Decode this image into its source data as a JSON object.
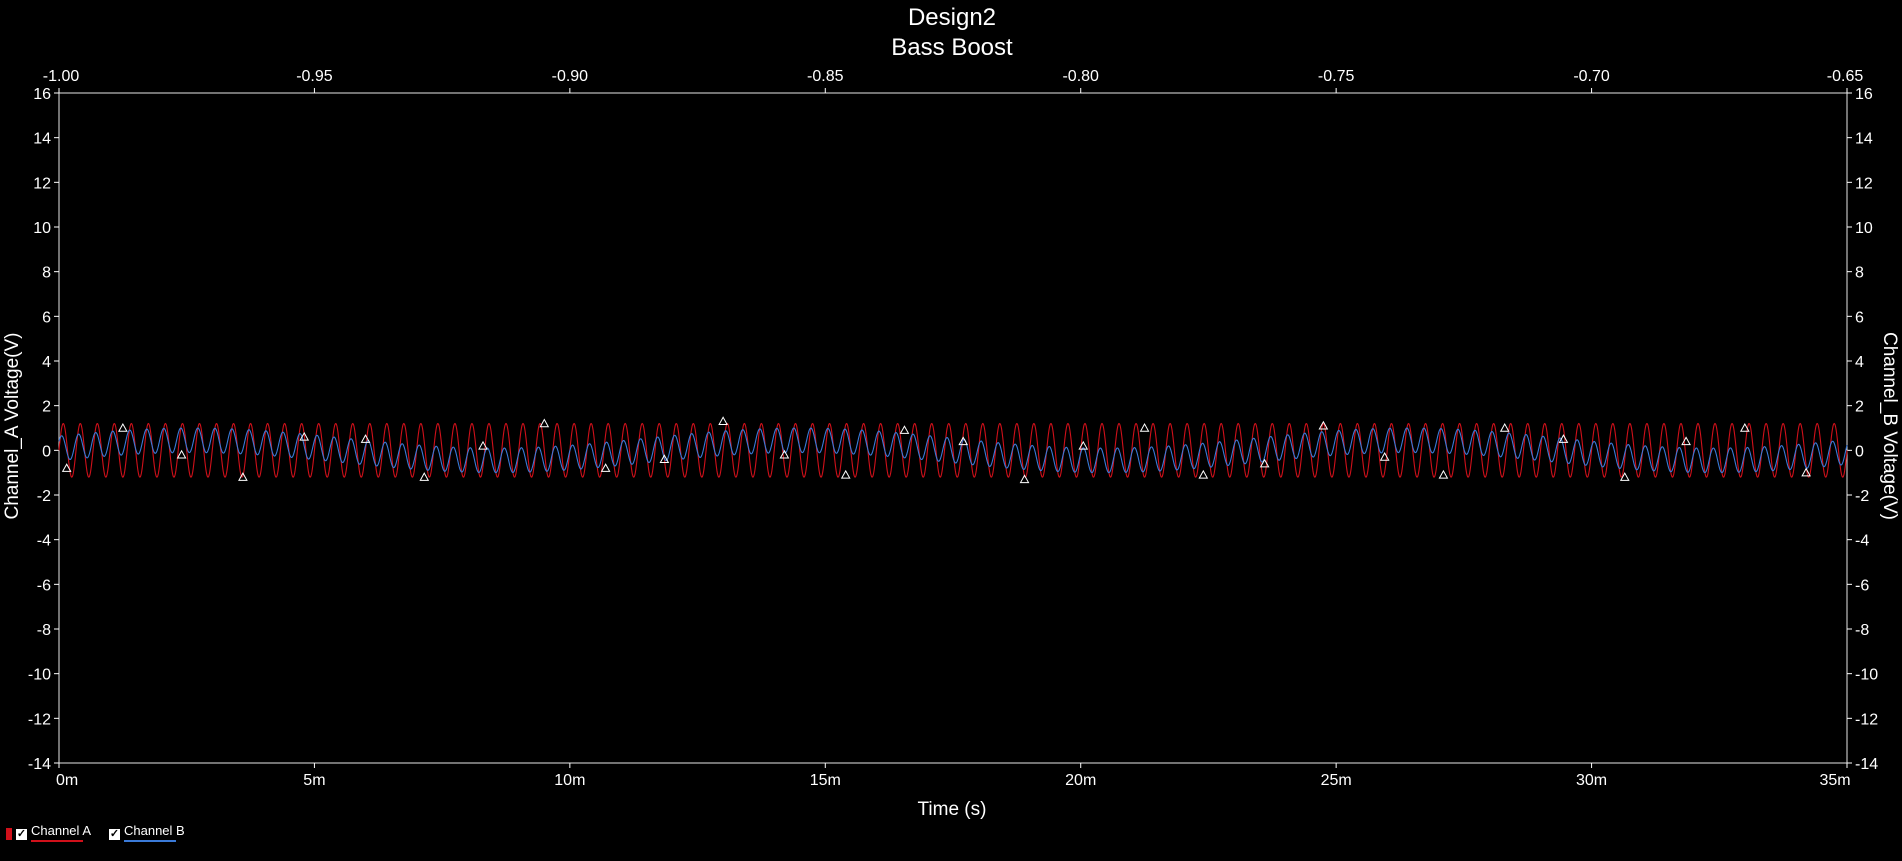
{
  "chart_data": {
    "type": "line",
    "title": "Design2",
    "subtitle": "Bass Boost",
    "xlabel": "Time (s)",
    "ylabel_left": "Channel_A Voltage(V)",
    "ylabel_right": "Channel_B Voltage(V)",
    "x_unit_suffix": "m",
    "xlim": [
      0,
      35
    ],
    "ylim": [
      -14,
      16
    ],
    "x_ticks": [
      0,
      5,
      10,
      15,
      20,
      25,
      30,
      35
    ],
    "x_tick_labels": [
      "0m",
      "5m",
      "10m",
      "15m",
      "20m",
      "25m",
      "30m",
      "35m"
    ],
    "top_xlim": [
      -1.0,
      -0.65
    ],
    "top_x_ticks": [
      -1.0,
      -0.95,
      -0.9,
      -0.85,
      -0.8,
      -0.75,
      -0.7,
      -0.65
    ],
    "top_x_tick_labels": [
      "-1.00",
      "-0.95",
      "-0.90",
      "-0.85",
      "-0.80",
      "-0.75",
      "-0.70",
      "-0.65"
    ],
    "y_ticks": [
      16,
      14,
      12,
      10,
      8,
      6,
      4,
      2,
      0,
      -2,
      -4,
      -6,
      -8,
      -10,
      -12,
      -14
    ],
    "y_tick_labels": [
      "16",
      "14",
      "12",
      "10",
      "8",
      "6",
      "4",
      "2",
      "0",
      "-2",
      "-4",
      "-6",
      "-8",
      "-10",
      "-12",
      "-14"
    ],
    "grid": false,
    "legend_position": "bottom-left",
    "background": "#000000",
    "text_color": "#ffffff",
    "series": [
      {
        "name": "Channel A",
        "color": "#d0101a",
        "kind": "sine",
        "amplitude_v": 1.2,
        "offset_v": 0.0,
        "frequency_hz": 3000,
        "checked": true
      },
      {
        "name": "Channel B",
        "color": "#3a7ad8",
        "kind": "sine_plus_low",
        "amplitude_v": 0.55,
        "offset_v": 0.0,
        "frequency_hz": 3000,
        "low_amplitude_v": 0.45,
        "low_frequency_hz": 84,
        "checked": true
      }
    ],
    "markers": {
      "shape": "triangle",
      "color": "#ffffff",
      "points": [
        {
          "x": 0.15,
          "y": -0.8
        },
        {
          "x": 1.25,
          "y": 1.0
        },
        {
          "x": 2.4,
          "y": -0.2
        },
        {
          "x": 3.6,
          "y": -1.2
        },
        {
          "x": 4.8,
          "y": 0.6
        },
        {
          "x": 6.0,
          "y": 0.5
        },
        {
          "x": 7.15,
          "y": -1.2
        },
        {
          "x": 8.3,
          "y": 0.2
        },
        {
          "x": 9.5,
          "y": 1.2
        },
        {
          "x": 10.7,
          "y": -0.8
        },
        {
          "x": 11.85,
          "y": -0.4
        },
        {
          "x": 13.0,
          "y": 1.3
        },
        {
          "x": 14.2,
          "y": -0.2
        },
        {
          "x": 15.4,
          "y": -1.1
        },
        {
          "x": 16.55,
          "y": 0.9
        },
        {
          "x": 17.7,
          "y": 0.4
        },
        {
          "x": 18.9,
          "y": -1.3
        },
        {
          "x": 20.05,
          "y": 0.2
        },
        {
          "x": 21.25,
          "y": 1.0
        },
        {
          "x": 22.4,
          "y": -1.1
        },
        {
          "x": 23.6,
          "y": -0.6
        },
        {
          "x": 24.75,
          "y": 1.1
        },
        {
          "x": 25.95,
          "y": -0.3
        },
        {
          "x": 27.1,
          "y": -1.1
        },
        {
          "x": 28.3,
          "y": 1.0
        },
        {
          "x": 29.45,
          "y": 0.5
        },
        {
          "x": 30.65,
          "y": -1.2
        },
        {
          "x": 31.85,
          "y": 0.4
        },
        {
          "x": 33.0,
          "y": 1.0
        },
        {
          "x": 34.2,
          "y": -1.0
        }
      ]
    }
  },
  "legend": {
    "items": [
      {
        "label": "Channel A",
        "color": "#d0101a"
      },
      {
        "label": "Channel B",
        "color": "#3a7ad8"
      }
    ],
    "check_glyph": "✓"
  }
}
